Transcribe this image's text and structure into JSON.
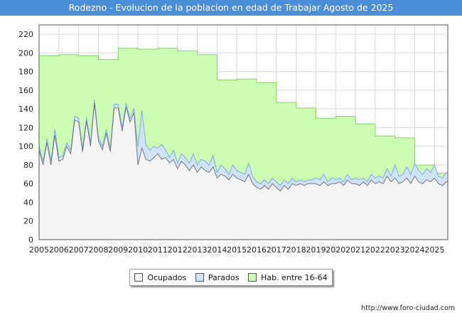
{
  "chart_data": {
    "type": "area",
    "title": "Rodezno - Evolucion de la poblacion en edad de Trabajar Agosto de 2025",
    "xlabel": "",
    "ylabel": "",
    "ylim": [
      0,
      230
    ],
    "yticks": [
      0,
      20,
      40,
      60,
      80,
      100,
      120,
      140,
      160,
      180,
      200,
      220
    ],
    "xlim": [
      2005,
      2025.67
    ],
    "xticks": [
      "2005",
      "2006",
      "2007",
      "2008",
      "2009",
      "2010",
      "2011",
      "2012",
      "2013",
      "2014",
      "2015",
      "2016",
      "2017",
      "2018",
      "2019",
      "2020",
      "2021",
      "2022",
      "2023",
      "2024",
      "2025"
    ],
    "watermark": "FORO-CIUDAD.COM",
    "legend_position": "bottom",
    "colors": {
      "hab": "#ccffb3",
      "hab_line": "#88cc66",
      "parados": "#cfe3fa",
      "parados_line": "#7aaae8",
      "ocupados": "#f4f4f4",
      "ocupados_line": "#777777",
      "grid": "#d8d8d8"
    },
    "series": [
      {
        "name": "Hab. entre 16-64",
        "x": [
          2005,
          2006,
          2007,
          2008,
          2009,
          2010,
          2011,
          2012,
          2013,
          2014,
          2015,
          2016,
          2017,
          2018,
          2019,
          2020,
          2021,
          2022,
          2023,
          2024,
          2025
        ],
        "values": [
          197,
          198,
          197,
          193,
          205,
          204,
          205,
          202,
          198,
          171,
          172,
          168,
          147,
          141,
          130,
          132,
          124,
          111,
          109,
          80,
          71
        ]
      },
      {
        "name": "Parados",
        "x": [
          2005.0,
          2005.2,
          2005.4,
          2005.6,
          2005.8,
          2006.0,
          2006.2,
          2006.4,
          2006.6,
          2006.8,
          2007.0,
          2007.2,
          2007.4,
          2007.6,
          2007.8,
          2008.0,
          2008.2,
          2008.4,
          2008.6,
          2008.8,
          2009.0,
          2009.2,
          2009.4,
          2009.6,
          2009.8,
          2010.0,
          2010.2,
          2010.4,
          2010.6,
          2010.8,
          2011.0,
          2011.2,
          2011.4,
          2011.6,
          2011.8,
          2012.0,
          2012.2,
          2012.4,
          2012.6,
          2012.8,
          2013.0,
          2013.2,
          2013.4,
          2013.6,
          2013.8,
          2014.0,
          2014.2,
          2014.4,
          2014.6,
          2014.8,
          2015.0,
          2015.2,
          2015.4,
          2015.6,
          2015.8,
          2016.0,
          2016.2,
          2016.4,
          2016.6,
          2016.8,
          2017.0,
          2017.2,
          2017.4,
          2017.6,
          2017.8,
          2018.0,
          2018.2,
          2018.4,
          2018.6,
          2018.8,
          2019.0,
          2019.2,
          2019.4,
          2019.6,
          2019.8,
          2020.0,
          2020.2,
          2020.4,
          2020.6,
          2020.8,
          2021.0,
          2021.2,
          2021.4,
          2021.6,
          2021.8,
          2022.0,
          2022.2,
          2022.4,
          2022.6,
          2022.8,
          2023.0,
          2023.2,
          2023.4,
          2023.6,
          2023.8,
          2024.0,
          2024.2,
          2024.4,
          2024.6,
          2024.8,
          2025.0,
          2025.2,
          2025.4,
          2025.6
        ],
        "values": [
          100,
          84,
          108,
          84,
          118,
          88,
          90,
          104,
          96,
          132,
          130,
          98,
          131,
          104,
          150,
          110,
          100,
          118,
          98,
          145,
          145,
          120,
          146,
          130,
          140,
          100,
          138,
          102,
          96,
          100,
          98,
          102,
          96,
          88,
          96,
          82,
          92,
          88,
          82,
          92,
          80,
          86,
          84,
          80,
          90,
          72,
          80,
          76,
          70,
          80,
          74,
          72,
          70,
          82,
          68,
          62,
          60,
          64,
          60,
          66,
          62,
          58,
          64,
          60,
          66,
          62,
          64,
          62,
          64,
          64,
          66,
          64,
          70,
          62,
          66,
          64,
          66,
          62,
          70,
          64,
          66,
          64,
          66,
          62,
          70,
          66,
          68,
          66,
          76,
          68,
          80,
          68,
          70,
          78,
          70,
          82,
          74,
          70,
          76,
          72,
          80,
          68,
          66,
          72
        ]
      },
      {
        "name": "Ocupados",
        "x": [
          2005.0,
          2005.2,
          2005.4,
          2005.6,
          2005.8,
          2006.0,
          2006.2,
          2006.4,
          2006.6,
          2006.8,
          2007.0,
          2007.2,
          2007.4,
          2007.6,
          2007.8,
          2008.0,
          2008.2,
          2008.4,
          2008.6,
          2008.8,
          2009.0,
          2009.2,
          2009.4,
          2009.6,
          2009.8,
          2010.0,
          2010.2,
          2010.4,
          2010.6,
          2010.8,
          2011.0,
          2011.2,
          2011.4,
          2011.6,
          2011.8,
          2012.0,
          2012.2,
          2012.4,
          2012.6,
          2012.8,
          2013.0,
          2013.2,
          2013.4,
          2013.6,
          2013.8,
          2014.0,
          2014.2,
          2014.4,
          2014.6,
          2014.8,
          2015.0,
          2015.2,
          2015.4,
          2015.6,
          2015.8,
          2016.0,
          2016.2,
          2016.4,
          2016.6,
          2016.8,
          2017.0,
          2017.2,
          2017.4,
          2017.6,
          2017.8,
          2018.0,
          2018.2,
          2018.4,
          2018.6,
          2018.8,
          2019.0,
          2019.2,
          2019.4,
          2019.6,
          2019.8,
          2020.0,
          2020.2,
          2020.4,
          2020.6,
          2020.8,
          2021.0,
          2021.2,
          2021.4,
          2021.6,
          2021.8,
          2022.0,
          2022.2,
          2022.4,
          2022.6,
          2022.8,
          2023.0,
          2023.2,
          2023.4,
          2023.6,
          2023.8,
          2024.0,
          2024.2,
          2024.4,
          2024.6,
          2024.8,
          2025.0,
          2025.2,
          2025.4,
          2025.6
        ],
        "values": [
          96,
          80,
          104,
          80,
          112,
          84,
          86,
          100,
          92,
          128,
          126,
          94,
          127,
          100,
          146,
          106,
          96,
          114,
          94,
          141,
          141,
          116,
          142,
          126,
          136,
          80,
          98,
          86,
          84,
          88,
          92,
          86,
          88,
          82,
          86,
          76,
          84,
          80,
          74,
          80,
          72,
          78,
          74,
          72,
          78,
          66,
          70,
          68,
          64,
          70,
          66,
          64,
          62,
          70,
          60,
          56,
          54,
          58,
          54,
          60,
          56,
          52,
          58,
          54,
          60,
          58,
          60,
          58,
          60,
          60,
          60,
          58,
          62,
          58,
          60,
          60,
          62,
          58,
          64,
          60,
          60,
          58,
          62,
          58,
          64,
          60,
          62,
          60,
          68,
          62,
          66,
          60,
          62,
          66,
          60,
          68,
          62,
          60,
          64,
          62,
          66,
          60,
          58,
          62
        ]
      }
    ]
  },
  "legend": {
    "ocupados": "Ocupados",
    "parados": "Parados",
    "hab": "Hab. entre 16-64"
  },
  "source": "http://www.foro-ciudad.com"
}
